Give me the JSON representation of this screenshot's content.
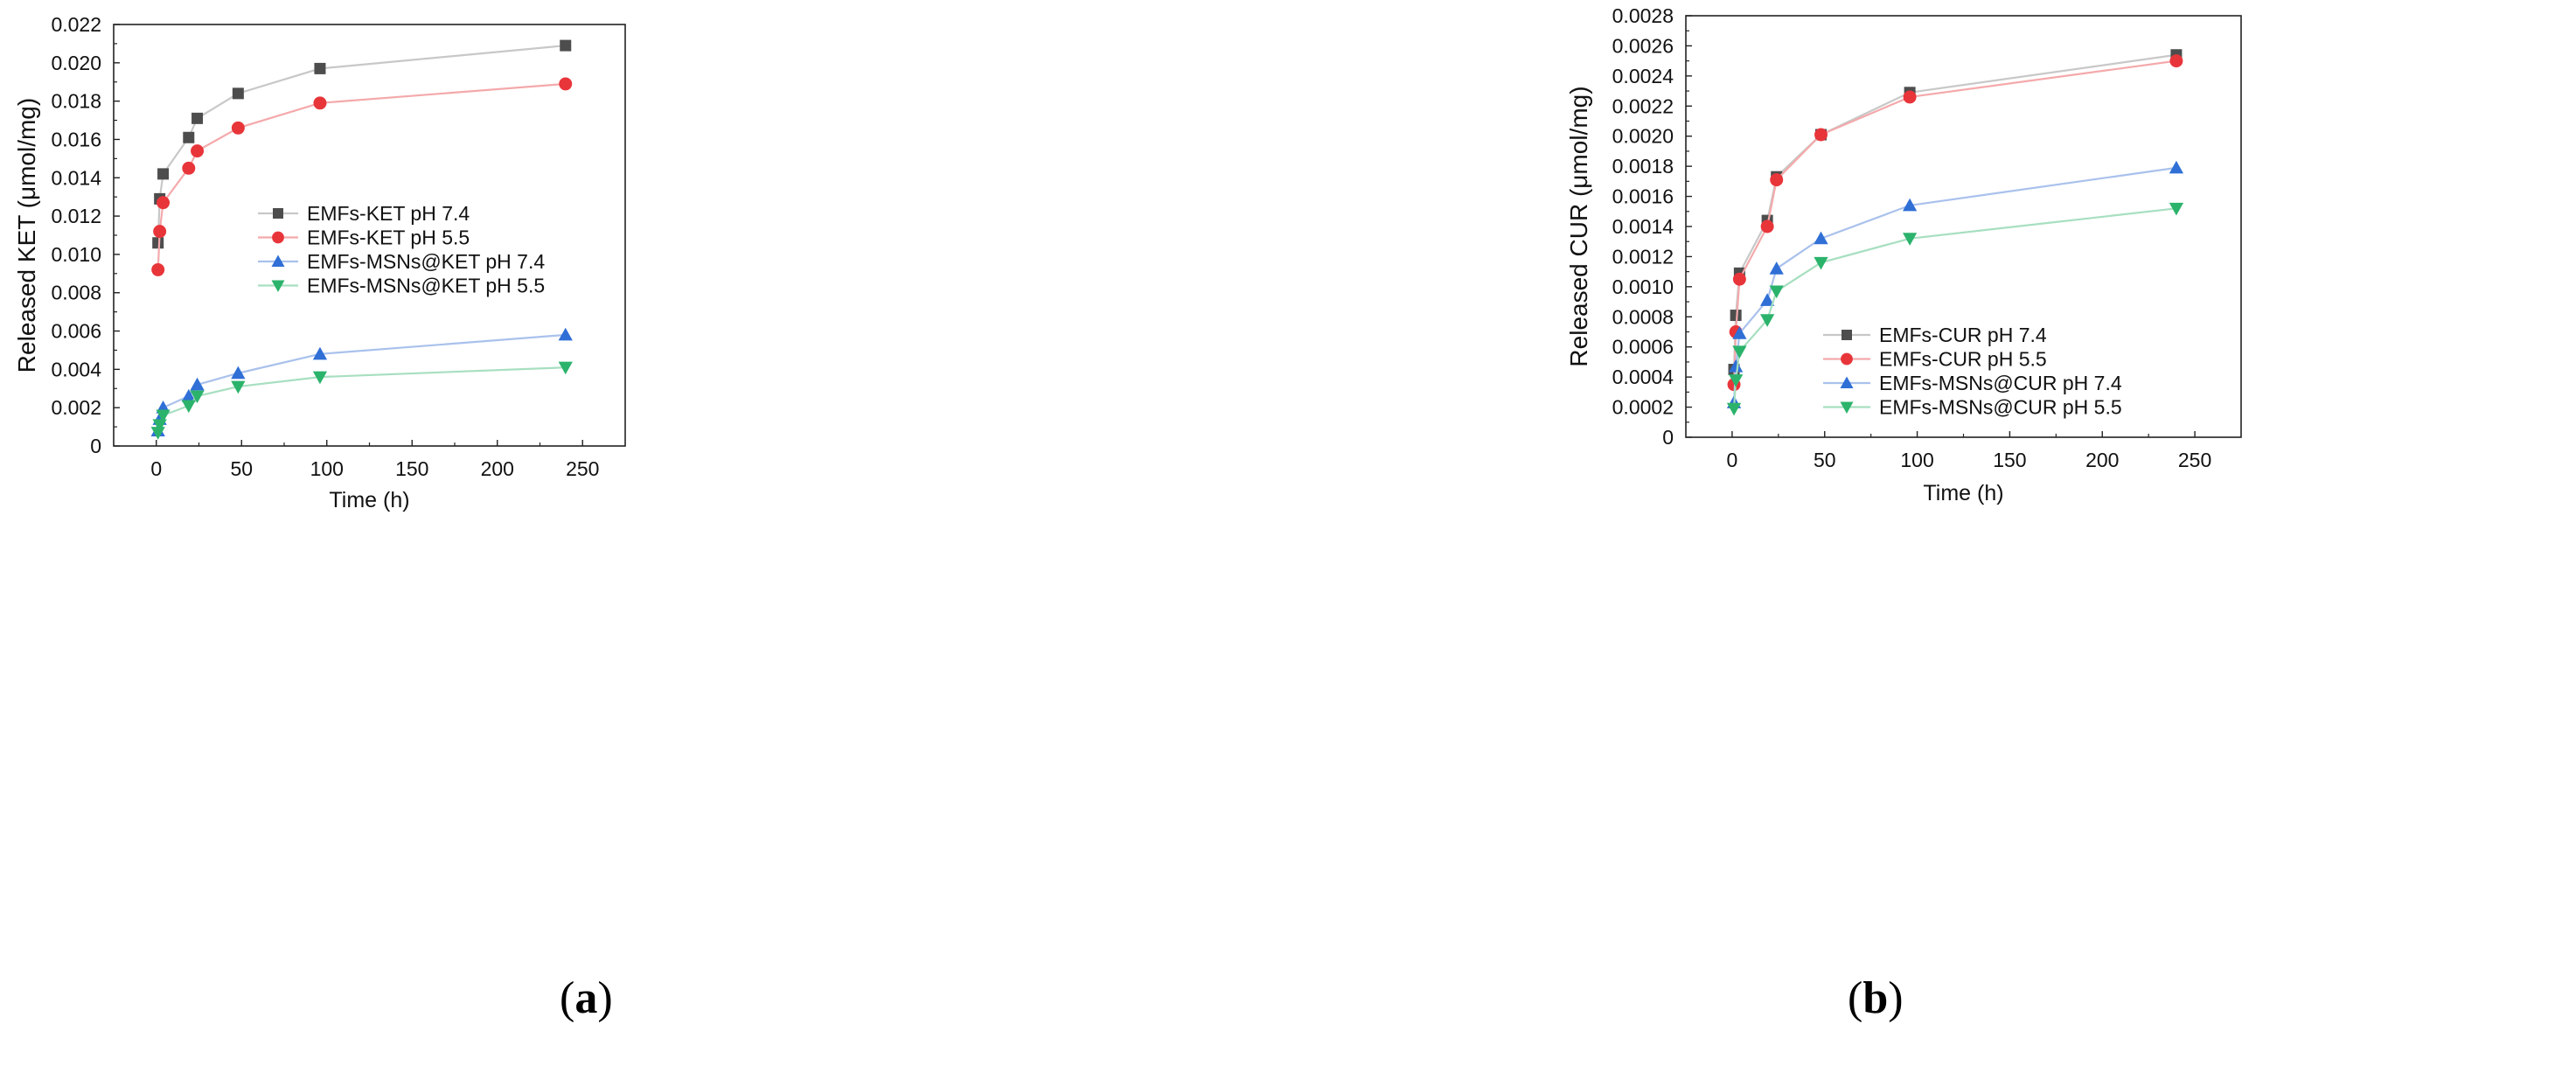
{
  "chart_data": [
    {
      "type": "line",
      "panel_label": "a",
      "xlabel": "Time (h)",
      "ylabel": "Released KET (μmol/mg)",
      "xlim": [
        -25,
        275
      ],
      "ylim": [
        0,
        0.022
      ],
      "x_ticks": [
        0,
        50,
        100,
        150,
        200,
        250
      ],
      "x_tick_labels": [
        "0",
        "50",
        "100",
        "150",
        "200",
        "250"
      ],
      "y_ticks": [
        0,
        0.002,
        0.004,
        0.006,
        0.008,
        0.01,
        0.012,
        0.014,
        0.016,
        0.018,
        0.02,
        0.022
      ],
      "y_tick_labels": [
        "0",
        "0.002",
        "0.004",
        "0.006",
        "0.008",
        "0.010",
        "0.012",
        "0.014",
        "0.016",
        "0.018",
        "0.020",
        "0.022"
      ],
      "grid": false,
      "legend_position": "center",
      "series": [
        {
          "name": "EMFs-KET pH 7.4",
          "marker": "square",
          "color": "#4d4d4d",
          "line_color": "#c8c8c8",
          "x": [
            1,
            2,
            4,
            19,
            24,
            48,
            96,
            240
          ],
          "y": [
            0.0106,
            0.0129,
            0.0142,
            0.0161,
            0.0171,
            0.0184,
            0.0197,
            0.0209
          ]
        },
        {
          "name": "EMFs-KET pH 5.5",
          "marker": "circle",
          "color": "#e8353a",
          "line_color": "#f4a9ab",
          "x": [
            1,
            2,
            4,
            19,
            24,
            48,
            96,
            240
          ],
          "y": [
            0.0092,
            0.0112,
            0.0127,
            0.0145,
            0.0154,
            0.0166,
            0.0179,
            0.0189
          ]
        },
        {
          "name": "EMFs-MSNs@KET pH 7.4",
          "marker": "triangle-up",
          "color": "#2f6fd6",
          "line_color": "#a9c1ec",
          "x": [
            1,
            2,
            4,
            19,
            24,
            48,
            96,
            240
          ],
          "y": [
            0.0008,
            0.0014,
            0.002,
            0.0026,
            0.0032,
            0.0038,
            0.0048,
            0.0058
          ]
        },
        {
          "name": "EMFs-MSNs@KET pH 5.5",
          "marker": "triangle-down",
          "color": "#2bb36b",
          "line_color": "#a7dfc0",
          "x": [
            1,
            2,
            4,
            19,
            24,
            48,
            96,
            240
          ],
          "y": [
            0.0007,
            0.0011,
            0.0016,
            0.0021,
            0.0026,
            0.0031,
            0.0036,
            0.0041
          ]
        }
      ]
    },
    {
      "type": "line",
      "panel_label": "b",
      "xlabel": "Time (h)",
      "ylabel": "Released CUR (μmol/mg)",
      "xlim": [
        -25,
        275
      ],
      "ylim": [
        0,
        0.0028
      ],
      "x_ticks": [
        0,
        50,
        100,
        150,
        200,
        250
      ],
      "x_tick_labels": [
        "0",
        "50",
        "100",
        "150",
        "200",
        "250"
      ],
      "y_ticks": [
        0,
        0.0002,
        0.0004,
        0.0006,
        0.0008,
        0.001,
        0.0012,
        0.0014,
        0.0016,
        0.0018,
        0.002,
        0.0022,
        0.0024,
        0.0026,
        0.0028
      ],
      "y_tick_labels": [
        "0",
        "0.0002",
        "0.0004",
        "0.0006",
        "0.0008",
        "0.0010",
        "0.0012",
        "0.0014",
        "0.0016",
        "0.0018",
        "0.0020",
        "0.0022",
        "0.0024",
        "0.0026",
        "0.0028"
      ],
      "grid": false,
      "legend_position": "lower-center",
      "series": [
        {
          "name": "EMFs-CUR pH 7.4",
          "marker": "square",
          "color": "#4d4d4d",
          "line_color": "#c8c8c8",
          "x": [
            1,
            2,
            4,
            19,
            24,
            48,
            96,
            240
          ],
          "y": [
            0.00045,
            0.00081,
            0.00109,
            0.00144,
            0.00173,
            0.00201,
            0.00229,
            0.00254
          ]
        },
        {
          "name": "EMFs-CUR pH 5.5",
          "marker": "circle",
          "color": "#e8353a",
          "line_color": "#f4a9ab",
          "x": [
            1,
            2,
            4,
            19,
            24,
            48,
            96,
            240
          ],
          "y": [
            0.00035,
            0.0007,
            0.00105,
            0.0014,
            0.00171,
            0.00201,
            0.00226,
            0.0025
          ]
        },
        {
          "name": "EMFs-MSNs@CUR pH 7.4",
          "marker": "triangle-up",
          "color": "#2f6fd6",
          "line_color": "#a9c1ec",
          "x": [
            1,
            2,
            4,
            19,
            24,
            48,
            96,
            240
          ],
          "y": [
            0.00023,
            0.00047,
            0.00069,
            0.00091,
            0.00112,
            0.00132,
            0.00154,
            0.00179
          ]
        },
        {
          "name": "EMFs-MSNs@CUR pH 5.5",
          "marker": "triangle-down",
          "color": "#2bb36b",
          "line_color": "#a7dfc0",
          "x": [
            1,
            2,
            4,
            19,
            24,
            48,
            96,
            240
          ],
          "y": [
            0.00019,
            0.00038,
            0.00057,
            0.00078,
            0.00097,
            0.00116,
            0.00132,
            0.00152
          ]
        }
      ]
    }
  ]
}
